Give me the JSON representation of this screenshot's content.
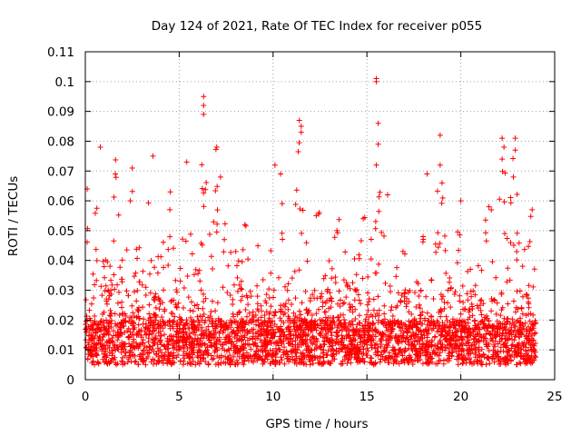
{
  "chart_data": {
    "type": "scatter",
    "title": "Day 124 of 2021, Rate Of TEC Index for receiver p055",
    "xlabel": "GPS time / hours",
    "ylabel": "ROTI / TECUs",
    "xlim": [
      0,
      25
    ],
    "ylim": [
      0,
      0.11
    ],
    "xticks": [
      0,
      5,
      10,
      15,
      20,
      25
    ],
    "xtick_labels": [
      "0",
      "5",
      "10",
      "15",
      "20",
      "25"
    ],
    "yticks": [
      0,
      0.01,
      0.02,
      0.03,
      0.04,
      0.05,
      0.06,
      0.07,
      0.08,
      0.09,
      0.1,
      0.11
    ],
    "ytick_labels": [
      "0",
      "0.01",
      "0.02",
      "0.03",
      "0.04",
      "0.05",
      "0.06",
      "0.07",
      "0.08",
      "0.09",
      "0.1",
      "0.11"
    ],
    "grid": true,
    "marker": "+",
    "series_color": "#ff0000",
    "time_range_hours": [
      0,
      24
    ],
    "typical_band": [
      0.005,
      0.02
    ],
    "notable_peaks": [
      {
        "x": 0.1,
        "y": 0.064
      },
      {
        "x": 0.8,
        "y": 0.078
      },
      {
        "x": 1.6,
        "y": 0.069
      },
      {
        "x": 2.5,
        "y": 0.071
      },
      {
        "x": 3.6,
        "y": 0.075
      },
      {
        "x": 4.5,
        "y": 0.057
      },
      {
        "x": 5.4,
        "y": 0.073
      },
      {
        "x": 6.3,
        "y": 0.095
      },
      {
        "x": 6.3,
        "y": 0.092
      },
      {
        "x": 6.3,
        "y": 0.089
      },
      {
        "x": 7.0,
        "y": 0.078
      },
      {
        "x": 7.2,
        "y": 0.068
      },
      {
        "x": 8.5,
        "y": 0.052
      },
      {
        "x": 10.1,
        "y": 0.072
      },
      {
        "x": 10.4,
        "y": 0.069
      },
      {
        "x": 11.4,
        "y": 0.087
      },
      {
        "x": 11.5,
        "y": 0.085
      },
      {
        "x": 11.5,
        "y": 0.083
      },
      {
        "x": 12.3,
        "y": 0.055
      },
      {
        "x": 13.4,
        "y": 0.05
      },
      {
        "x": 14.8,
        "y": 0.054
      },
      {
        "x": 15.5,
        "y": 0.101
      },
      {
        "x": 15.5,
        "y": 0.1
      },
      {
        "x": 15.6,
        "y": 0.086
      },
      {
        "x": 15.6,
        "y": 0.079
      },
      {
        "x": 15.5,
        "y": 0.072
      },
      {
        "x": 16.1,
        "y": 0.062
      },
      {
        "x": 18.2,
        "y": 0.069
      },
      {
        "x": 18.9,
        "y": 0.082
      },
      {
        "x": 18.9,
        "y": 0.072
      },
      {
        "x": 19.0,
        "y": 0.066
      },
      {
        "x": 20.0,
        "y": 0.06
      },
      {
        "x": 21.5,
        "y": 0.058
      },
      {
        "x": 22.2,
        "y": 0.081
      },
      {
        "x": 22.3,
        "y": 0.078
      },
      {
        "x": 22.2,
        "y": 0.074
      },
      {
        "x": 22.9,
        "y": 0.081
      },
      {
        "x": 22.9,
        "y": 0.077
      },
      {
        "x": 22.8,
        "y": 0.068
      },
      {
        "x": 23.8,
        "y": 0.057
      }
    ]
  }
}
